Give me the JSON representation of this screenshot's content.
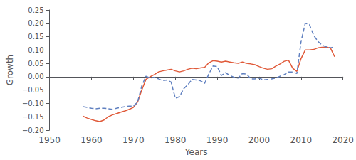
{
  "chart_data": {
    "type": "line",
    "xlabel": "Years",
    "ylabel": "Growth",
    "xlim": [
      1950,
      2020
    ],
    "ylim": [
      -0.2,
      0.25
    ],
    "xticks": [
      1950,
      1960,
      1970,
      1980,
      1990,
      2000,
      2010,
      2020
    ],
    "yticks": [
      {
        "value": -0.2,
        "label": "−0.20"
      },
      {
        "value": -0.15,
        "label": "−0.15"
      },
      {
        "value": -0.1,
        "label": "−0.10"
      },
      {
        "value": -0.05,
        "label": "−0.05"
      },
      {
        "value": 0.0,
        "label": "0.00"
      },
      {
        "value": 0.05,
        "label": "0.05"
      },
      {
        "value": 0.1,
        "label": "0.10"
      },
      {
        "value": 0.15,
        "label": "0.15"
      },
      {
        "value": 0.2,
        "label": "0.20"
      },
      {
        "value": 0.25,
        "label": "0.25"
      }
    ],
    "grid": false,
    "x": [
      1958,
      1959,
      1960,
      1961,
      1962,
      1963,
      1964,
      1965,
      1966,
      1967,
      1968,
      1969,
      1970,
      1971,
      1972,
      1973,
      1974,
      1975,
      1976,
      1977,
      1978,
      1979,
      1980,
      1981,
      1982,
      1983,
      1984,
      1985,
      1986,
      1987,
      1988,
      1989,
      1990,
      1991,
      1992,
      1993,
      1994,
      1995,
      1996,
      1997,
      1998,
      1999,
      2000,
      2001,
      2002,
      2003,
      2004,
      2005,
      2006,
      2007,
      2008,
      2009,
      2010,
      2011,
      2012,
      2013,
      2014,
      2015,
      2016,
      2017,
      2018
    ],
    "series": [
      {
        "color": "#E05A3A",
        "line_style": "solid",
        "values": [
          -0.148,
          -0.155,
          -0.16,
          -0.165,
          -0.168,
          -0.162,
          -0.15,
          -0.143,
          -0.138,
          -0.133,
          -0.128,
          -0.122,
          -0.115,
          -0.095,
          -0.05,
          -0.01,
          0.0,
          0.008,
          0.018,
          0.022,
          0.025,
          0.028,
          0.022,
          0.018,
          0.022,
          0.028,
          0.032,
          0.03,
          0.033,
          0.035,
          0.052,
          0.06,
          0.058,
          0.055,
          0.058,
          0.055,
          0.052,
          0.05,
          0.055,
          0.05,
          0.048,
          0.045,
          0.038,
          0.032,
          0.028,
          0.03,
          0.04,
          0.048,
          0.058,
          0.062,
          0.032,
          0.02,
          0.068,
          0.1,
          0.1,
          0.102,
          0.108,
          0.11,
          0.11,
          0.108,
          0.075
        ]
      },
      {
        "color": "#6080C0",
        "line_style": "dashed",
        "values": [
          -0.112,
          -0.115,
          -0.118,
          -0.12,
          -0.118,
          -0.118,
          -0.12,
          -0.122,
          -0.118,
          -0.115,
          -0.112,
          -0.11,
          -0.11,
          -0.095,
          -0.035,
          0.002,
          -0.005,
          -0.002,
          -0.008,
          -0.015,
          -0.012,
          -0.02,
          -0.08,
          -0.075,
          -0.045,
          -0.03,
          -0.01,
          -0.012,
          -0.015,
          -0.025,
          0.01,
          0.04,
          0.038,
          0.005,
          0.015,
          0.005,
          -0.002,
          -0.005,
          0.012,
          0.01,
          -0.008,
          -0.008,
          -0.005,
          -0.012,
          -0.01,
          -0.008,
          -0.005,
          0.002,
          0.008,
          0.018,
          0.018,
          0.012,
          0.132,
          0.2,
          0.195,
          0.155,
          0.133,
          0.118,
          0.112,
          0.108,
          0.112
        ]
      }
    ]
  }
}
